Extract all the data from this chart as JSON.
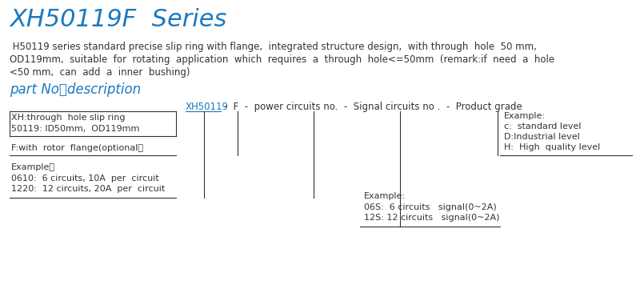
{
  "title": "XH50119F  Series",
  "title_color": "#1a7abf",
  "title_fontsize": 22,
  "bg_color": "#ffffff",
  "desc_lines": [
    " H50119 series standard precise slip ring with flange,  integrated structure design,  with through  hole  50 mm,",
    "OD119mm,  suitable  for  rotating  application  which  requires  a  through  hole<=50mm  (remark:if  need  a  hole",
    "<50 mm,  can  add  a  inner  bushing)"
  ],
  "desc_fontsize": 8.5,
  "desc_color": "#333333",
  "section_title": "part No．description",
  "section_title_color": "#1a7abf",
  "section_title_fontsize": 12,
  "part_label_blue": "XH50119",
  "part_label_rest": " -  F  -  power circuits no.  -  Signal circuits no .  -  Product grade",
  "part_label_color": "#1a7abf",
  "part_label_black": "#333333",
  "part_label_fontsize": 8.5,
  "left_box_line1": "XH:through  hole slip ring",
  "left_box_line2": "50119: ID50mm,  OD119mm",
  "left_box_line3": "F:with  rotor  flange(optional）",
  "left_example_label": "Example：",
  "left_example_lines": [
    "0610:  6 circuits, 10A  per  circuit",
    "1220:  12 circuits, 20A  per  circuit"
  ],
  "right_example_label": "Example:",
  "right_example_lines": [
    "06S:  6 circuits   signal(0~2A)",
    "12S: 12 circuits   signal(0~2A)"
  ],
  "product_example_label": "Example:",
  "product_example_lines": [
    "c:  standard level",
    "D:Industrial level",
    "H:  High  quality level"
  ],
  "text_fontsize": 8.0,
  "line_color": "#333333"
}
